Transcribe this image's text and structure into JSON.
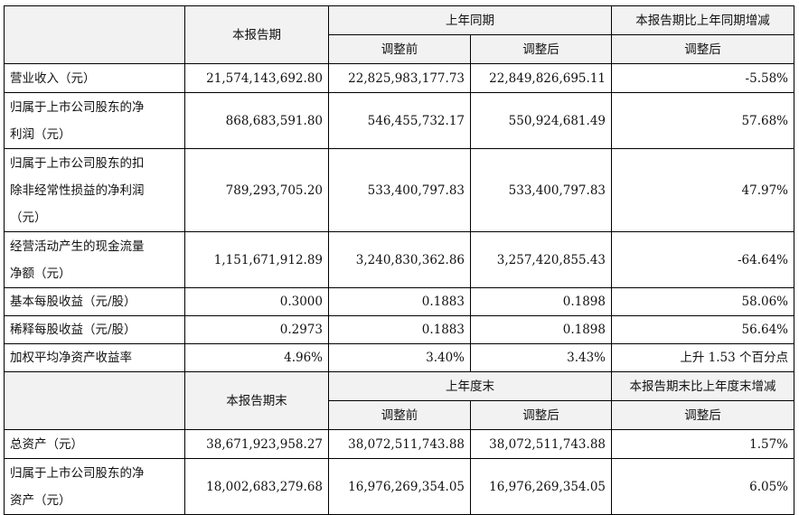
{
  "section1": {
    "header": {
      "current_period": "本报告期",
      "prior_year_same_period": "上年同期",
      "change_label": "本报告期比上年同期增减",
      "before_adjustment": "调整前",
      "after_adjustment": "调整后",
      "change_after_adjustment": "调整后"
    },
    "rows": [
      {
        "label": "营业收入（元）",
        "current": "21,574,143,692.80",
        "before": "22,825,983,177.73",
        "after": "22,849,826,695.11",
        "change": "-5.58%"
      },
      {
        "label": "归属于上市公司股东的净\n利润（元）",
        "current": "868,683,591.80",
        "before": "546,455,732.17",
        "after": "550,924,681.49",
        "change": "57.68%"
      },
      {
        "label": "归属于上市公司股东的扣\n除非经常性损益的净利润\n（元）",
        "current": "789,293,705.20",
        "before": "533,400,797.83",
        "after": "533,400,797.83",
        "change": "47.97%"
      },
      {
        "label": "经营活动产生的现金流量\n净额（元）",
        "current": "1,151,671,912.89",
        "before": "3,240,830,362.86",
        "after": "3,257,420,855.43",
        "change": "-64.64%"
      },
      {
        "label": "基本每股收益（元/股）",
        "current": "0.3000",
        "before": "0.1883",
        "after": "0.1898",
        "change": "58.06%"
      },
      {
        "label": "稀释每股收益（元/股）",
        "current": "0.2973",
        "before": "0.1883",
        "after": "0.1898",
        "change": "56.64%"
      },
      {
        "label": "加权平均净资产收益率",
        "current": "4.96%",
        "before": "3.40%",
        "after": "3.43%",
        "change": "上升 1.53 个百分点"
      }
    ]
  },
  "section2": {
    "header": {
      "current_period_end": "本报告期末",
      "prior_year_end": "上年度末",
      "change_label": "本报告期末比上年度末增减",
      "before_adjustment": "调整前",
      "after_adjustment": "调整后",
      "change_after_adjustment": "调整后"
    },
    "rows": [
      {
        "label": "总资产（元）",
        "current": "38,671,923,958.27",
        "before": "38,072,511,743.88",
        "after": "38,072,511,743.88",
        "change": "1.57%"
      },
      {
        "label": "归属于上市公司股东的净\n资产（元）",
        "current": "18,002,683,279.68",
        "before": "16,976,269,354.05",
        "after": "16,976,269,354.05",
        "change": "6.05%"
      }
    ]
  }
}
